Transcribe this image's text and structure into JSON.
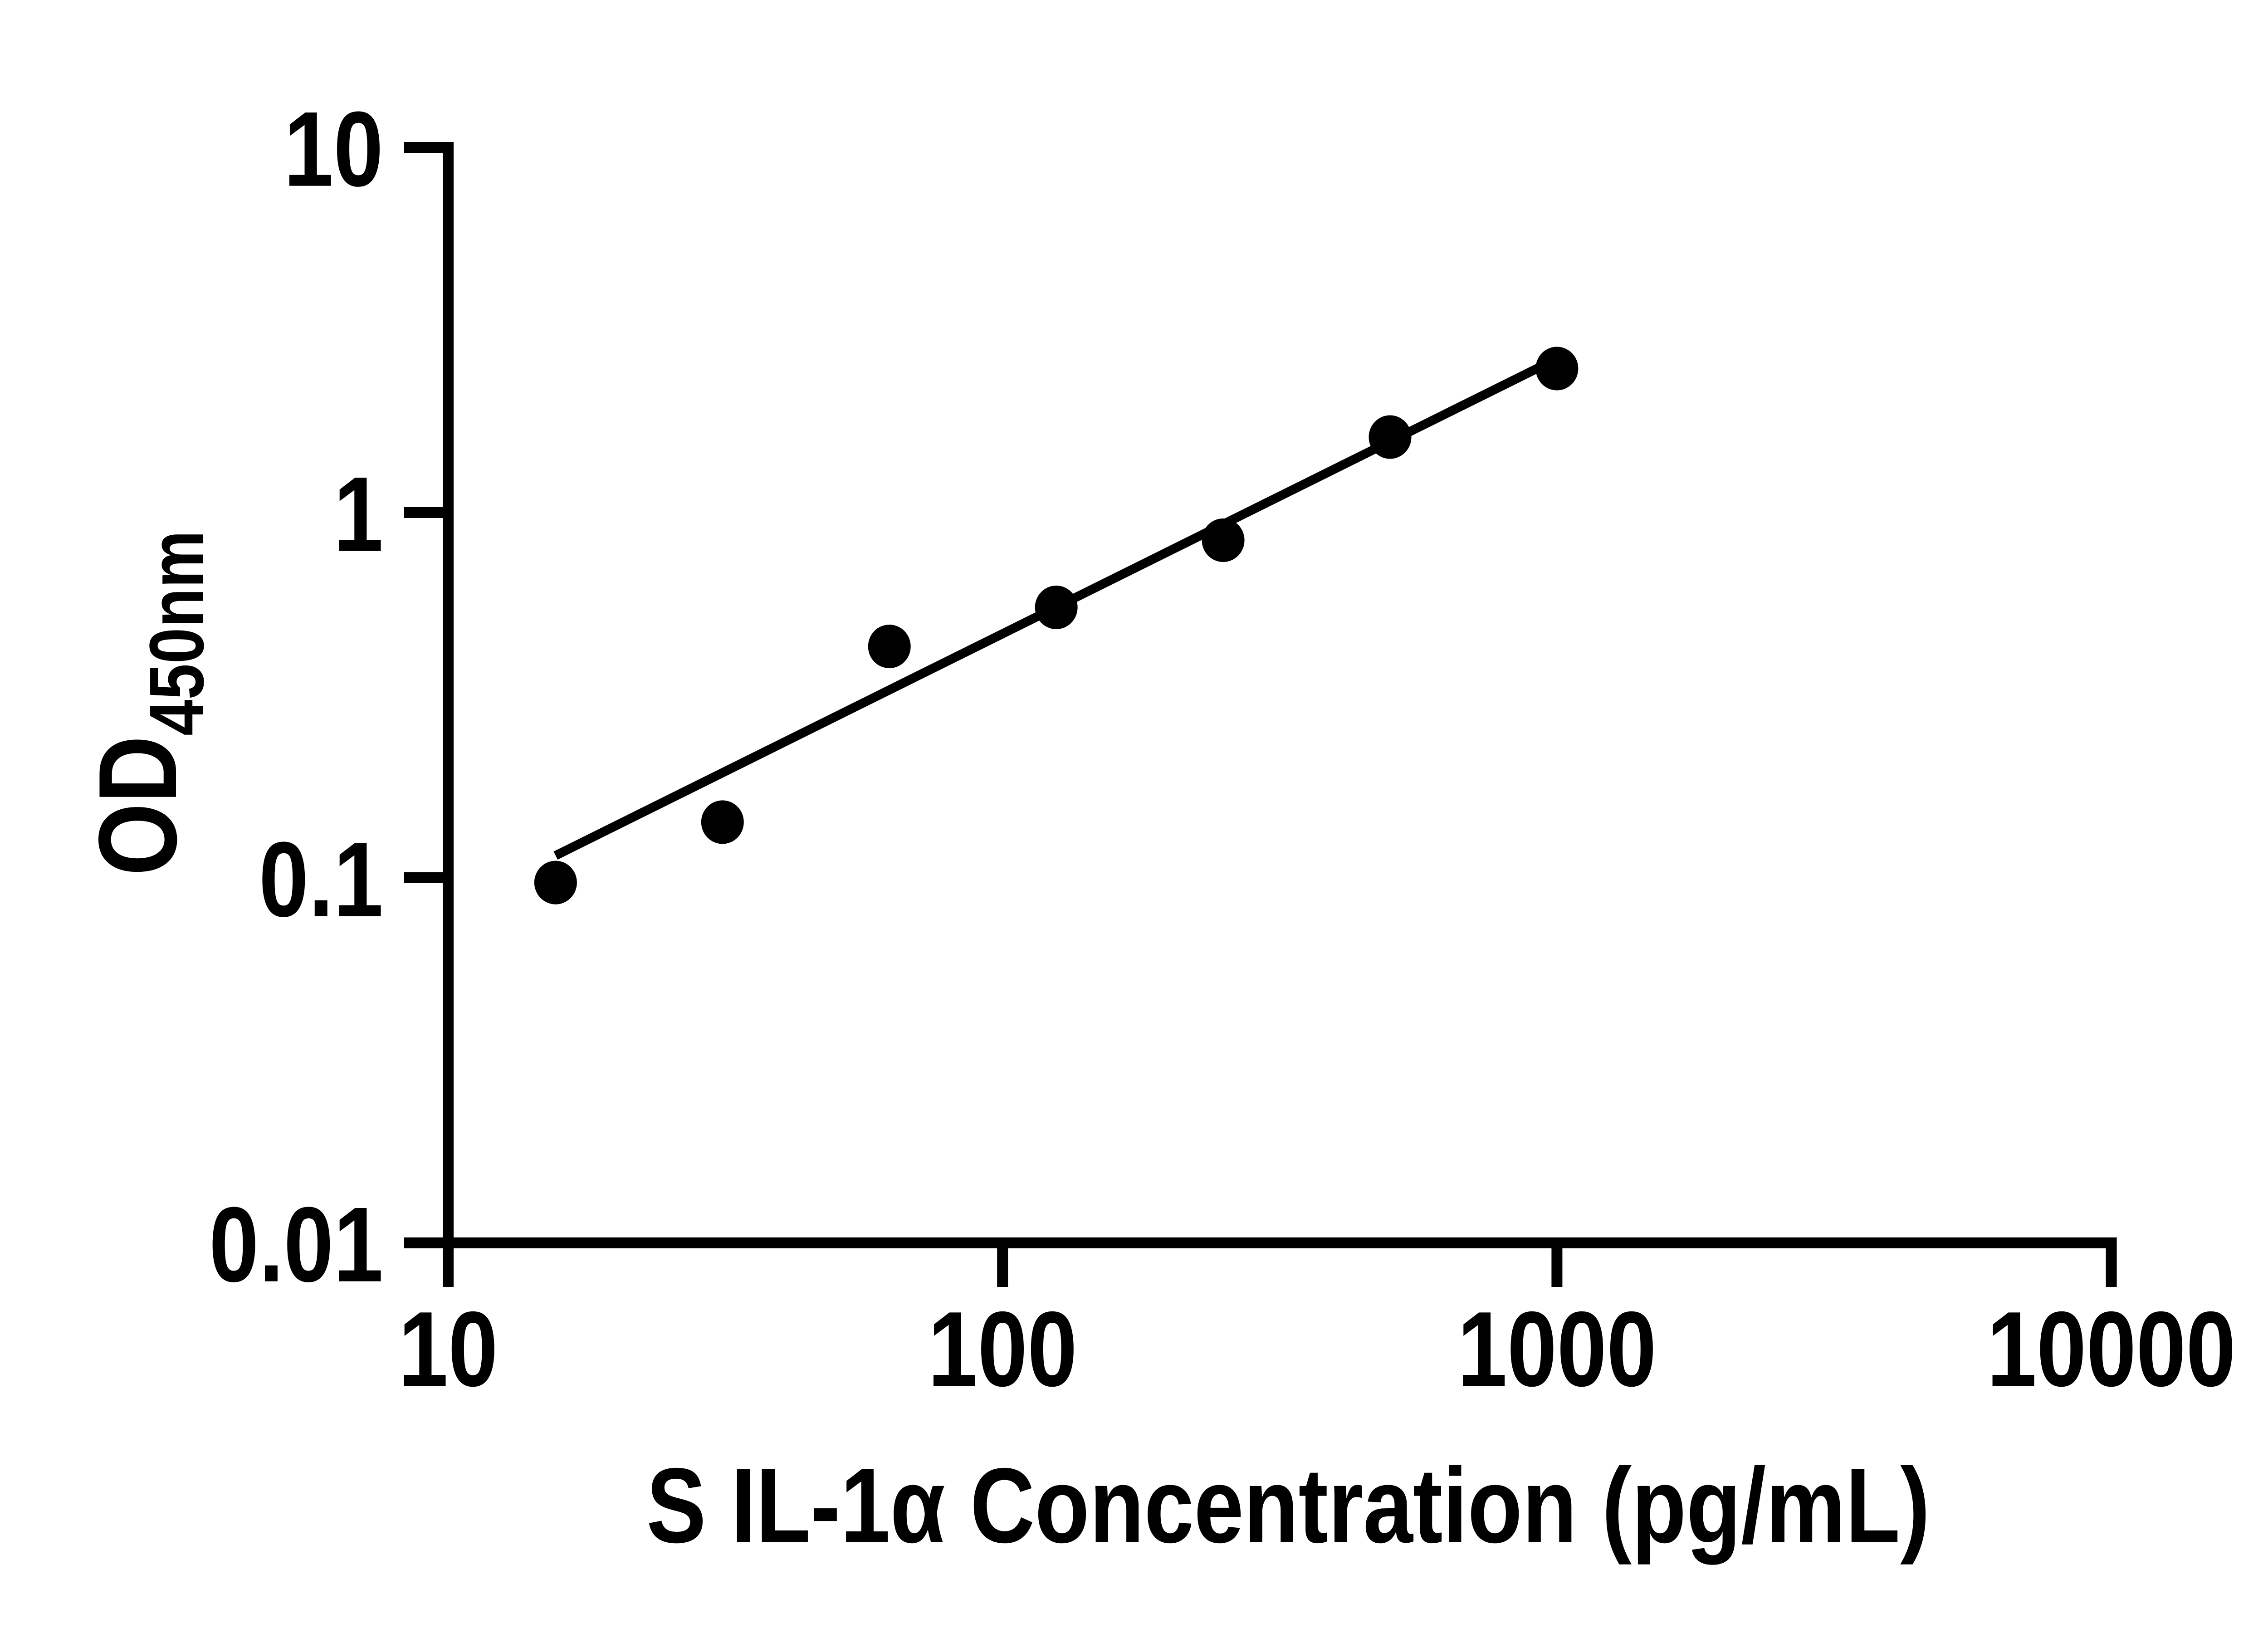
{
  "chart_data": {
    "type": "scatter",
    "title": "",
    "xlabel": "S IL-1α Concentration (pg/mL)",
    "ylabel_main": "OD",
    "ylabel_sub": "450nm",
    "x_scale": "log",
    "y_scale": "log",
    "xlim": [
      10,
      10000
    ],
    "ylim": [
      0.01,
      10
    ],
    "x_ticks": [
      10,
      100,
      1000,
      10000
    ],
    "x_tick_labels": [
      "10",
      "100",
      "1000",
      "10000"
    ],
    "y_ticks": [
      10,
      1,
      0.1,
      0.01
    ],
    "y_tick_labels": [
      "10",
      "1",
      "0.1",
      "0.01"
    ],
    "grid": false,
    "legend": null,
    "series": [
      {
        "name": "standard-curve-points",
        "marker": "filled-circle",
        "x": [
          15.625,
          31.25,
          62.5,
          125,
          250,
          500,
          1000
        ],
        "y": [
          0.097,
          0.142,
          0.43,
          0.55,
          0.84,
          1.61,
          2.48
        ]
      }
    ],
    "trendline": {
      "type": "linear-log-log-fit",
      "x1": 15.625,
      "y1": 0.115,
      "x2": 1000,
      "y2": 2.64
    },
    "colors": {
      "ink": "#000000",
      "background": "#ffffff"
    }
  }
}
